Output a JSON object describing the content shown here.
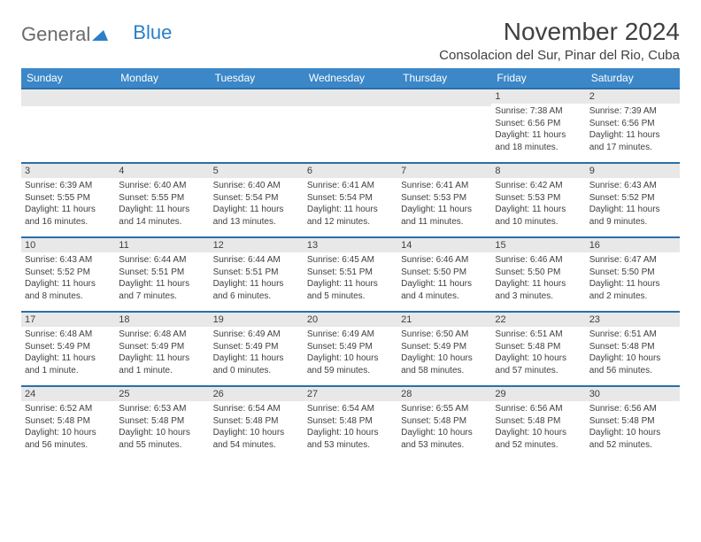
{
  "logo": {
    "text1": "General",
    "text2": "Blue"
  },
  "title": "November 2024",
  "location": "Consolacion del Sur, Pinar del Rio, Cuba",
  "colors": {
    "header_bg": "#3b87c8",
    "header_text": "#ffffff",
    "day_bar_bg": "#e8e8e8",
    "day_bar_border": "#2a6fa8",
    "body_text": "#404040",
    "logo_gray": "#6b6b6b",
    "logo_blue": "#2a7fc9"
  },
  "weekdays": [
    "Sunday",
    "Monday",
    "Tuesday",
    "Wednesday",
    "Thursday",
    "Friday",
    "Saturday"
  ],
  "weeks": [
    [
      {
        "empty": true
      },
      {
        "empty": true
      },
      {
        "empty": true
      },
      {
        "empty": true
      },
      {
        "empty": true
      },
      {
        "day": "1",
        "sunrise": "Sunrise: 7:38 AM",
        "sunset": "Sunset: 6:56 PM",
        "daylight": "Daylight: 11 hours and 18 minutes."
      },
      {
        "day": "2",
        "sunrise": "Sunrise: 7:39 AM",
        "sunset": "Sunset: 6:56 PM",
        "daylight": "Daylight: 11 hours and 17 minutes."
      }
    ],
    [
      {
        "day": "3",
        "sunrise": "Sunrise: 6:39 AM",
        "sunset": "Sunset: 5:55 PM",
        "daylight": "Daylight: 11 hours and 16 minutes."
      },
      {
        "day": "4",
        "sunrise": "Sunrise: 6:40 AM",
        "sunset": "Sunset: 5:55 PM",
        "daylight": "Daylight: 11 hours and 14 minutes."
      },
      {
        "day": "5",
        "sunrise": "Sunrise: 6:40 AM",
        "sunset": "Sunset: 5:54 PM",
        "daylight": "Daylight: 11 hours and 13 minutes."
      },
      {
        "day": "6",
        "sunrise": "Sunrise: 6:41 AM",
        "sunset": "Sunset: 5:54 PM",
        "daylight": "Daylight: 11 hours and 12 minutes."
      },
      {
        "day": "7",
        "sunrise": "Sunrise: 6:41 AM",
        "sunset": "Sunset: 5:53 PM",
        "daylight": "Daylight: 11 hours and 11 minutes."
      },
      {
        "day": "8",
        "sunrise": "Sunrise: 6:42 AM",
        "sunset": "Sunset: 5:53 PM",
        "daylight": "Daylight: 11 hours and 10 minutes."
      },
      {
        "day": "9",
        "sunrise": "Sunrise: 6:43 AM",
        "sunset": "Sunset: 5:52 PM",
        "daylight": "Daylight: 11 hours and 9 minutes."
      }
    ],
    [
      {
        "day": "10",
        "sunrise": "Sunrise: 6:43 AM",
        "sunset": "Sunset: 5:52 PM",
        "daylight": "Daylight: 11 hours and 8 minutes."
      },
      {
        "day": "11",
        "sunrise": "Sunrise: 6:44 AM",
        "sunset": "Sunset: 5:51 PM",
        "daylight": "Daylight: 11 hours and 7 minutes."
      },
      {
        "day": "12",
        "sunrise": "Sunrise: 6:44 AM",
        "sunset": "Sunset: 5:51 PM",
        "daylight": "Daylight: 11 hours and 6 minutes."
      },
      {
        "day": "13",
        "sunrise": "Sunrise: 6:45 AM",
        "sunset": "Sunset: 5:51 PM",
        "daylight": "Daylight: 11 hours and 5 minutes."
      },
      {
        "day": "14",
        "sunrise": "Sunrise: 6:46 AM",
        "sunset": "Sunset: 5:50 PM",
        "daylight": "Daylight: 11 hours and 4 minutes."
      },
      {
        "day": "15",
        "sunrise": "Sunrise: 6:46 AM",
        "sunset": "Sunset: 5:50 PM",
        "daylight": "Daylight: 11 hours and 3 minutes."
      },
      {
        "day": "16",
        "sunrise": "Sunrise: 6:47 AM",
        "sunset": "Sunset: 5:50 PM",
        "daylight": "Daylight: 11 hours and 2 minutes."
      }
    ],
    [
      {
        "day": "17",
        "sunrise": "Sunrise: 6:48 AM",
        "sunset": "Sunset: 5:49 PM",
        "daylight": "Daylight: 11 hours and 1 minute."
      },
      {
        "day": "18",
        "sunrise": "Sunrise: 6:48 AM",
        "sunset": "Sunset: 5:49 PM",
        "daylight": "Daylight: 11 hours and 1 minute."
      },
      {
        "day": "19",
        "sunrise": "Sunrise: 6:49 AM",
        "sunset": "Sunset: 5:49 PM",
        "daylight": "Daylight: 11 hours and 0 minutes."
      },
      {
        "day": "20",
        "sunrise": "Sunrise: 6:49 AM",
        "sunset": "Sunset: 5:49 PM",
        "daylight": "Daylight: 10 hours and 59 minutes."
      },
      {
        "day": "21",
        "sunrise": "Sunrise: 6:50 AM",
        "sunset": "Sunset: 5:49 PM",
        "daylight": "Daylight: 10 hours and 58 minutes."
      },
      {
        "day": "22",
        "sunrise": "Sunrise: 6:51 AM",
        "sunset": "Sunset: 5:48 PM",
        "daylight": "Daylight: 10 hours and 57 minutes."
      },
      {
        "day": "23",
        "sunrise": "Sunrise: 6:51 AM",
        "sunset": "Sunset: 5:48 PM",
        "daylight": "Daylight: 10 hours and 56 minutes."
      }
    ],
    [
      {
        "day": "24",
        "sunrise": "Sunrise: 6:52 AM",
        "sunset": "Sunset: 5:48 PM",
        "daylight": "Daylight: 10 hours and 56 minutes."
      },
      {
        "day": "25",
        "sunrise": "Sunrise: 6:53 AM",
        "sunset": "Sunset: 5:48 PM",
        "daylight": "Daylight: 10 hours and 55 minutes."
      },
      {
        "day": "26",
        "sunrise": "Sunrise: 6:54 AM",
        "sunset": "Sunset: 5:48 PM",
        "daylight": "Daylight: 10 hours and 54 minutes."
      },
      {
        "day": "27",
        "sunrise": "Sunrise: 6:54 AM",
        "sunset": "Sunset: 5:48 PM",
        "daylight": "Daylight: 10 hours and 53 minutes."
      },
      {
        "day": "28",
        "sunrise": "Sunrise: 6:55 AM",
        "sunset": "Sunset: 5:48 PM",
        "daylight": "Daylight: 10 hours and 53 minutes."
      },
      {
        "day": "29",
        "sunrise": "Sunrise: 6:56 AM",
        "sunset": "Sunset: 5:48 PM",
        "daylight": "Daylight: 10 hours and 52 minutes."
      },
      {
        "day": "30",
        "sunrise": "Sunrise: 6:56 AM",
        "sunset": "Sunset: 5:48 PM",
        "daylight": "Daylight: 10 hours and 52 minutes."
      }
    ]
  ]
}
